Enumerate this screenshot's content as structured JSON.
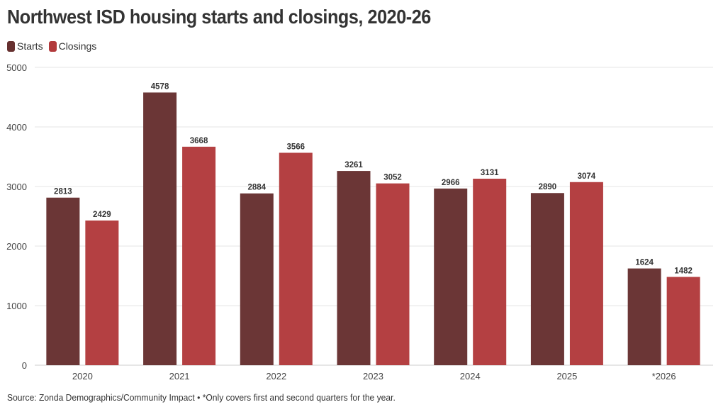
{
  "colors": {
    "starts": "#66302f",
    "closings": "#b23a3c",
    "grid": "#e6e6e6"
  },
  "legend": {
    "starts_label": "Starts",
    "closings_label": "Closings"
  },
  "chart_data": {
    "type": "bar",
    "title": "Northwest ISD housing starts and closings, 2020-26",
    "categories": [
      "2020",
      "2021",
      "2022",
      "2023",
      "2024",
      "2025",
      "*2026"
    ],
    "series": [
      {
        "name": "Starts",
        "values": [
          2813,
          4578,
          2884,
          3261,
          2966,
          2890,
          1624
        ]
      },
      {
        "name": "Closings",
        "values": [
          2429,
          3668,
          3566,
          3052,
          3131,
          3074,
          1482
        ]
      }
    ],
    "ylim": [
      0,
      5000
    ],
    "yticks": [
      0,
      1000,
      2000,
      3000,
      4000,
      5000
    ],
    "grid": true,
    "legend_position": "top-left",
    "xlabel": "",
    "ylabel": ""
  },
  "source": "Source: Zonda Demographics/Community Impact • *Only covers first and second quarters for the year."
}
